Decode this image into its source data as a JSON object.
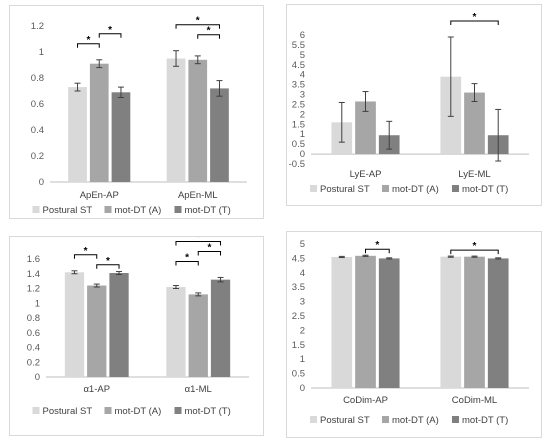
{
  "colors": {
    "postural": "#d9d9d9",
    "motA": "#a6a6a6",
    "motT": "#808080",
    "grid": "#e6e6e6",
    "axis": "#bfbfbf",
    "err": "#404040"
  },
  "chart_data": [
    {
      "type": "bar",
      "categories": [
        "ApEn-AP",
        "ApEn-ML"
      ],
      "series": [
        {
          "name": "Postural ST",
          "values": [
            0.73,
            0.95
          ],
          "err": [
            0.03,
            0.06
          ]
        },
        {
          "name": "mot-DT (A)",
          "values": [
            0.91,
            0.94
          ],
          "err": [
            0.03,
            0.03
          ]
        },
        {
          "name": "mot-DT (T)",
          "values": [
            0.69,
            0.72
          ],
          "err": [
            0.04,
            0.06
          ]
        }
      ],
      "yticks": [
        "0",
        "0.2",
        "0.4",
        "0.6",
        "0.8",
        "1",
        "1.2"
      ],
      "ylim": [
        0,
        1.2
      ],
      "significance": [
        {
          "category": 0,
          "from": 0,
          "to": 1,
          "level": 1
        },
        {
          "category": 0,
          "from": 1,
          "to": 2,
          "level": 2
        },
        {
          "category": 1,
          "from": 0,
          "to": 2,
          "level": 2
        },
        {
          "category": 1,
          "from": 1,
          "to": 2,
          "level": 1
        }
      ],
      "legend": [
        "Postural ST",
        "mot-DT (A)",
        "mot-DT (T)"
      ],
      "legend_position": "bottom",
      "grid": false
    },
    {
      "type": "bar",
      "categories": [
        "LyE-AP",
        "LyE-ML"
      ],
      "series": [
        {
          "name": "Postural ST",
          "values": [
            1.6,
            3.9
          ],
          "err": [
            1.0,
            2.0
          ]
        },
        {
          "name": "mot-DT (A)",
          "values": [
            2.65,
            3.1
          ],
          "err": [
            0.5,
            0.45
          ]
        },
        {
          "name": "mot-DT (T)",
          "values": [
            0.95,
            0.95
          ],
          "err": [
            0.7,
            1.3
          ]
        }
      ],
      "yticks": [
        "-0.5",
        "0",
        "0.5",
        "1",
        "1.5",
        "2",
        "2.5",
        "3",
        "3.5",
        "4",
        "4.5",
        "5",
        "5.5",
        "6"
      ],
      "ylim": [
        -0.5,
        6
      ],
      "significance": [
        {
          "category": 1,
          "from": 0,
          "to": 2,
          "level": 1
        }
      ],
      "legend": [
        "Postural ST",
        "mot-DT (A)",
        "mot-DT (T)"
      ],
      "legend_position": "bottom",
      "grid": false
    },
    {
      "type": "bar",
      "categories": [
        "α1-AP",
        "α1-ML"
      ],
      "series": [
        {
          "name": "Postural ST",
          "values": [
            1.42,
            1.22
          ],
          "err": [
            0.02,
            0.02
          ]
        },
        {
          "name": "mot-DT (A)",
          "values": [
            1.24,
            1.12
          ],
          "err": [
            0.02,
            0.02
          ]
        },
        {
          "name": "mot-DT (T)",
          "values": [
            1.41,
            1.32
          ],
          "err": [
            0.02,
            0.03
          ]
        }
      ],
      "yticks": [
        "0",
        "0.2",
        "0.4",
        "0.6",
        "0.8",
        "1",
        "1.2",
        "1.4",
        "1.6"
      ],
      "ylim": [
        0,
        1.6
      ],
      "significance": [
        {
          "category": 0,
          "from": 0,
          "to": 1,
          "level": 1
        },
        {
          "category": 0,
          "from": 1,
          "to": 2,
          "level": 0
        },
        {
          "category": 1,
          "from": 0,
          "to": 1,
          "level": 1
        },
        {
          "category": 1,
          "from": 1,
          "to": 2,
          "level": 2
        },
        {
          "category": 1,
          "from": 0,
          "to": 2,
          "level": 3
        }
      ],
      "legend": [
        "Postural ST",
        "mot-DT (A)",
        "mot-DT (T)"
      ],
      "legend_position": "bottom",
      "grid": false
    },
    {
      "type": "bar",
      "categories": [
        "CoDim-AP",
        "CoDim-ML"
      ],
      "series": [
        {
          "name": "Postural ST",
          "values": [
            4.55,
            4.56
          ],
          "err": [
            0.02,
            0.02
          ]
        },
        {
          "name": "mot-DT (A)",
          "values": [
            4.59,
            4.56
          ],
          "err": [
            0.02,
            0.02
          ]
        },
        {
          "name": "mot-DT (T)",
          "values": [
            4.5,
            4.5
          ],
          "err": [
            0.02,
            0.02
          ]
        }
      ],
      "yticks": [
        "0",
        "0.5",
        "1",
        "1.5",
        "2",
        "2.5",
        "3",
        "3.5",
        "4",
        "4.5",
        "5"
      ],
      "ylim": [
        0,
        5
      ],
      "significance": [
        {
          "category": 0,
          "from": 1,
          "to": 2,
          "level": 0
        },
        {
          "category": 1,
          "from": 0,
          "to": 2,
          "level": 0
        }
      ],
      "legend": [
        "Postural ST",
        "mot-DT (A)",
        "mot-DT (T)"
      ],
      "legend_position": "bottom",
      "grid": false
    }
  ]
}
